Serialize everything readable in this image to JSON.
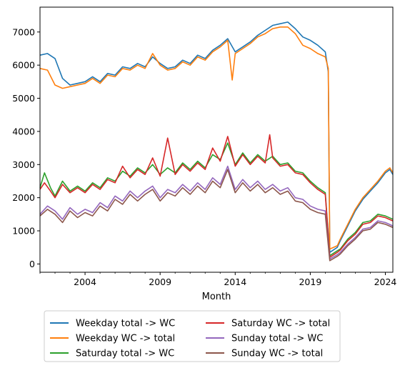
{
  "chart_data": {
    "type": "line",
    "title": "",
    "xlabel": "Month",
    "ylabel": "",
    "xlim": [
      2001.0,
      2024.5
    ],
    "ylim": [
      -250,
      7750
    ],
    "yticks": [
      0,
      1000,
      2000,
      3000,
      4000,
      5000,
      6000,
      7000
    ],
    "xticks": [
      2004,
      2009,
      2014,
      2019,
      2024
    ],
    "grid": false,
    "legend": "below",
    "legend_columns": 2,
    "series": [
      {
        "name": "Weekday total -> WC",
        "color": "#1f77b4",
        "points": [
          [
            2001.0,
            6300
          ],
          [
            2001.5,
            6350
          ],
          [
            2002.0,
            6200
          ],
          [
            2002.5,
            5600
          ],
          [
            2003.0,
            5400
          ],
          [
            2003.5,
            5450
          ],
          [
            2004.0,
            5500
          ],
          [
            2004.5,
            5650
          ],
          [
            2005.0,
            5500
          ],
          [
            2005.5,
            5750
          ],
          [
            2006.0,
            5700
          ],
          [
            2006.5,
            5950
          ],
          [
            2007.0,
            5900
          ],
          [
            2007.5,
            6050
          ],
          [
            2008.0,
            5950
          ],
          [
            2008.5,
            6250
          ],
          [
            2009.0,
            6050
          ],
          [
            2009.5,
            5900
          ],
          [
            2010.0,
            5950
          ],
          [
            2010.5,
            6150
          ],
          [
            2011.0,
            6050
          ],
          [
            2011.5,
            6300
          ],
          [
            2012.0,
            6200
          ],
          [
            2012.5,
            6450
          ],
          [
            2013.0,
            6600
          ],
          [
            2013.5,
            6800
          ],
          [
            2014.0,
            6400
          ],
          [
            2014.5,
            6550
          ],
          [
            2015.0,
            6700
          ],
          [
            2015.5,
            6900
          ],
          [
            2016.0,
            7050
          ],
          [
            2016.5,
            7200
          ],
          [
            2017.0,
            7250
          ],
          [
            2017.5,
            7300
          ],
          [
            2018.0,
            7100
          ],
          [
            2018.5,
            6850
          ],
          [
            2019.0,
            6750
          ],
          [
            2019.5,
            6600
          ],
          [
            2020.0,
            6400
          ],
          [
            2020.2,
            5800
          ],
          [
            2020.3,
            350
          ],
          [
            2020.8,
            500
          ],
          [
            2021.0,
            700
          ],
          [
            2021.5,
            1150
          ],
          [
            2022.0,
            1600
          ],
          [
            2022.5,
            1950
          ],
          [
            2023.0,
            2200
          ],
          [
            2023.5,
            2450
          ],
          [
            2024.0,
            2750
          ],
          [
            2024.3,
            2850
          ],
          [
            2024.5,
            2700
          ]
        ]
      },
      {
        "name": "Weekday WC -> total",
        "color": "#ff7f0e",
        "points": [
          [
            2001.0,
            5900
          ],
          [
            2001.5,
            5850
          ],
          [
            2002.0,
            5400
          ],
          [
            2002.5,
            5300
          ],
          [
            2003.0,
            5350
          ],
          [
            2003.5,
            5400
          ],
          [
            2004.0,
            5450
          ],
          [
            2004.5,
            5600
          ],
          [
            2005.0,
            5450
          ],
          [
            2005.5,
            5700
          ],
          [
            2006.0,
            5650
          ],
          [
            2006.5,
            5900
          ],
          [
            2007.0,
            5850
          ],
          [
            2007.5,
            6000
          ],
          [
            2008.0,
            5900
          ],
          [
            2008.5,
            6350
          ],
          [
            2009.0,
            6000
          ],
          [
            2009.5,
            5850
          ],
          [
            2010.0,
            5900
          ],
          [
            2010.5,
            6100
          ],
          [
            2011.0,
            6000
          ],
          [
            2011.5,
            6250
          ],
          [
            2012.0,
            6150
          ],
          [
            2012.5,
            6400
          ],
          [
            2013.0,
            6550
          ],
          [
            2013.5,
            6750
          ],
          [
            2013.8,
            5550
          ],
          [
            2014.0,
            6350
          ],
          [
            2014.5,
            6500
          ],
          [
            2015.0,
            6650
          ],
          [
            2015.5,
            6850
          ],
          [
            2016.0,
            6950
          ],
          [
            2016.5,
            7100
          ],
          [
            2017.0,
            7150
          ],
          [
            2017.5,
            7150
          ],
          [
            2018.0,
            6950
          ],
          [
            2018.5,
            6600
          ],
          [
            2019.0,
            6500
          ],
          [
            2019.5,
            6350
          ],
          [
            2020.0,
            6250
          ],
          [
            2020.2,
            5900
          ],
          [
            2020.3,
            450
          ],
          [
            2020.8,
            550
          ],
          [
            2021.0,
            750
          ],
          [
            2021.5,
            1200
          ],
          [
            2022.0,
            1650
          ],
          [
            2022.5,
            2000
          ],
          [
            2023.0,
            2250
          ],
          [
            2023.5,
            2500
          ],
          [
            2024.0,
            2800
          ],
          [
            2024.3,
            2900
          ],
          [
            2024.5,
            2750
          ]
        ]
      },
      {
        "name": "Saturday total -> WC",
        "color": "#2ca02c",
        "points": [
          [
            2001.0,
            2300
          ],
          [
            2001.3,
            2750
          ],
          [
            2001.7,
            2300
          ],
          [
            2002.0,
            2050
          ],
          [
            2002.5,
            2500
          ],
          [
            2003.0,
            2200
          ],
          [
            2003.5,
            2350
          ],
          [
            2004.0,
            2200
          ],
          [
            2004.5,
            2450
          ],
          [
            2005.0,
            2300
          ],
          [
            2005.5,
            2600
          ],
          [
            2006.0,
            2500
          ],
          [
            2006.5,
            2800
          ],
          [
            2007.0,
            2650
          ],
          [
            2007.5,
            2900
          ],
          [
            2008.0,
            2750
          ],
          [
            2008.5,
            3000
          ],
          [
            2009.0,
            2700
          ],
          [
            2009.5,
            2900
          ],
          [
            2010.0,
            2750
          ],
          [
            2010.5,
            3050
          ],
          [
            2011.0,
            2850
          ],
          [
            2011.5,
            3100
          ],
          [
            2012.0,
            2900
          ],
          [
            2012.5,
            3300
          ],
          [
            2013.0,
            3150
          ],
          [
            2013.5,
            3650
          ],
          [
            2014.0,
            3000
          ],
          [
            2014.5,
            3350
          ],
          [
            2015.0,
            3050
          ],
          [
            2015.5,
            3300
          ],
          [
            2016.0,
            3100
          ],
          [
            2016.5,
            3250
          ],
          [
            2017.0,
            3000
          ],
          [
            2017.5,
            3050
          ],
          [
            2018.0,
            2800
          ],
          [
            2018.5,
            2750
          ],
          [
            2019.0,
            2500
          ],
          [
            2019.5,
            2300
          ],
          [
            2020.0,
            2150
          ],
          [
            2020.3,
            250
          ],
          [
            2020.8,
            400
          ],
          [
            2021.0,
            450
          ],
          [
            2021.5,
            750
          ],
          [
            2022.0,
            950
          ],
          [
            2022.5,
            1250
          ],
          [
            2023.0,
            1300
          ],
          [
            2023.5,
            1500
          ],
          [
            2024.0,
            1450
          ],
          [
            2024.5,
            1350
          ]
        ]
      },
      {
        "name": "Saturday WC -> total",
        "color": "#d62728",
        "points": [
          [
            2001.0,
            2250
          ],
          [
            2001.3,
            2450
          ],
          [
            2001.7,
            2200
          ],
          [
            2002.0,
            2000
          ],
          [
            2002.5,
            2400
          ],
          [
            2003.0,
            2150
          ],
          [
            2003.5,
            2300
          ],
          [
            2004.0,
            2150
          ],
          [
            2004.5,
            2400
          ],
          [
            2005.0,
            2250
          ],
          [
            2005.5,
            2550
          ],
          [
            2006.0,
            2450
          ],
          [
            2006.5,
            2950
          ],
          [
            2007.0,
            2600
          ],
          [
            2007.5,
            2850
          ],
          [
            2008.0,
            2700
          ],
          [
            2008.5,
            3200
          ],
          [
            2009.0,
            2650
          ],
          [
            2009.5,
            3800
          ],
          [
            2010.0,
            2700
          ],
          [
            2010.5,
            3000
          ],
          [
            2011.0,
            2800
          ],
          [
            2011.5,
            3050
          ],
          [
            2012.0,
            2850
          ],
          [
            2012.5,
            3500
          ],
          [
            2013.0,
            3100
          ],
          [
            2013.5,
            3850
          ],
          [
            2014.0,
            2950
          ],
          [
            2014.5,
            3300
          ],
          [
            2015.0,
            3000
          ],
          [
            2015.5,
            3250
          ],
          [
            2016.0,
            3050
          ],
          [
            2016.3,
            3900
          ],
          [
            2016.5,
            3200
          ],
          [
            2017.0,
            2950
          ],
          [
            2017.5,
            3000
          ],
          [
            2018.0,
            2750
          ],
          [
            2018.5,
            2700
          ],
          [
            2019.0,
            2450
          ],
          [
            2019.5,
            2250
          ],
          [
            2020.0,
            2100
          ],
          [
            2020.3,
            200
          ],
          [
            2020.8,
            350
          ],
          [
            2021.0,
            420
          ],
          [
            2021.5,
            700
          ],
          [
            2022.0,
            900
          ],
          [
            2022.5,
            1200
          ],
          [
            2023.0,
            1250
          ],
          [
            2023.5,
            1450
          ],
          [
            2024.0,
            1400
          ],
          [
            2024.5,
            1300
          ]
        ]
      },
      {
        "name": "Sunday total -> WC",
        "color": "#9467bd",
        "points": [
          [
            2001.0,
            1500
          ],
          [
            2001.5,
            1750
          ],
          [
            2002.0,
            1600
          ],
          [
            2002.5,
            1350
          ],
          [
            2003.0,
            1700
          ],
          [
            2003.5,
            1500
          ],
          [
            2004.0,
            1650
          ],
          [
            2004.5,
            1550
          ],
          [
            2005.0,
            1850
          ],
          [
            2005.5,
            1700
          ],
          [
            2006.0,
            2050
          ],
          [
            2006.5,
            1900
          ],
          [
            2007.0,
            2200
          ],
          [
            2007.5,
            2000
          ],
          [
            2008.0,
            2200
          ],
          [
            2008.5,
            2350
          ],
          [
            2009.0,
            2000
          ],
          [
            2009.5,
            2250
          ],
          [
            2010.0,
            2150
          ],
          [
            2010.5,
            2400
          ],
          [
            2011.0,
            2200
          ],
          [
            2011.5,
            2450
          ],
          [
            2012.0,
            2250
          ],
          [
            2012.5,
            2600
          ],
          [
            2013.0,
            2400
          ],
          [
            2013.5,
            2950
          ],
          [
            2014.0,
            2250
          ],
          [
            2014.5,
            2550
          ],
          [
            2015.0,
            2300
          ],
          [
            2015.5,
            2500
          ],
          [
            2016.0,
            2250
          ],
          [
            2016.5,
            2400
          ],
          [
            2017.0,
            2200
          ],
          [
            2017.5,
            2300
          ],
          [
            2018.0,
            2000
          ],
          [
            2018.5,
            1950
          ],
          [
            2019.0,
            1750
          ],
          [
            2019.5,
            1650
          ],
          [
            2020.0,
            1600
          ],
          [
            2020.3,
            150
          ],
          [
            2020.8,
            280
          ],
          [
            2021.0,
            350
          ],
          [
            2021.5,
            600
          ],
          [
            2022.0,
            800
          ],
          [
            2022.5,
            1050
          ],
          [
            2023.0,
            1100
          ],
          [
            2023.5,
            1300
          ],
          [
            2024.0,
            1250
          ],
          [
            2024.5,
            1150
          ]
        ]
      },
      {
        "name": "Sunday WC -> total",
        "color": "#8c564b",
        "points": [
          [
            2001.0,
            1450
          ],
          [
            2001.5,
            1650
          ],
          [
            2002.0,
            1500
          ],
          [
            2002.5,
            1250
          ],
          [
            2003.0,
            1600
          ],
          [
            2003.5,
            1400
          ],
          [
            2004.0,
            1550
          ],
          [
            2004.5,
            1450
          ],
          [
            2005.0,
            1750
          ],
          [
            2005.5,
            1600
          ],
          [
            2006.0,
            1950
          ],
          [
            2006.5,
            1800
          ],
          [
            2007.0,
            2100
          ],
          [
            2007.5,
            1900
          ],
          [
            2008.0,
            2100
          ],
          [
            2008.5,
            2250
          ],
          [
            2009.0,
            1900
          ],
          [
            2009.5,
            2150
          ],
          [
            2010.0,
            2050
          ],
          [
            2010.5,
            2300
          ],
          [
            2011.0,
            2100
          ],
          [
            2011.5,
            2350
          ],
          [
            2012.0,
            2150
          ],
          [
            2012.5,
            2500
          ],
          [
            2013.0,
            2300
          ],
          [
            2013.5,
            2850
          ],
          [
            2014.0,
            2150
          ],
          [
            2014.5,
            2450
          ],
          [
            2015.0,
            2200
          ],
          [
            2015.5,
            2400
          ],
          [
            2016.0,
            2150
          ],
          [
            2016.5,
            2300
          ],
          [
            2017.0,
            2100
          ],
          [
            2017.5,
            2200
          ],
          [
            2018.0,
            1900
          ],
          [
            2018.5,
            1850
          ],
          [
            2019.0,
            1650
          ],
          [
            2019.5,
            1550
          ],
          [
            2020.0,
            1500
          ],
          [
            2020.3,
            100
          ],
          [
            2020.8,
            230
          ],
          [
            2021.0,
            300
          ],
          [
            2021.5,
            550
          ],
          [
            2022.0,
            750
          ],
          [
            2022.5,
            1000
          ],
          [
            2023.0,
            1050
          ],
          [
            2023.5,
            1250
          ],
          [
            2024.0,
            1200
          ],
          [
            2024.5,
            1100
          ]
        ]
      }
    ]
  }
}
